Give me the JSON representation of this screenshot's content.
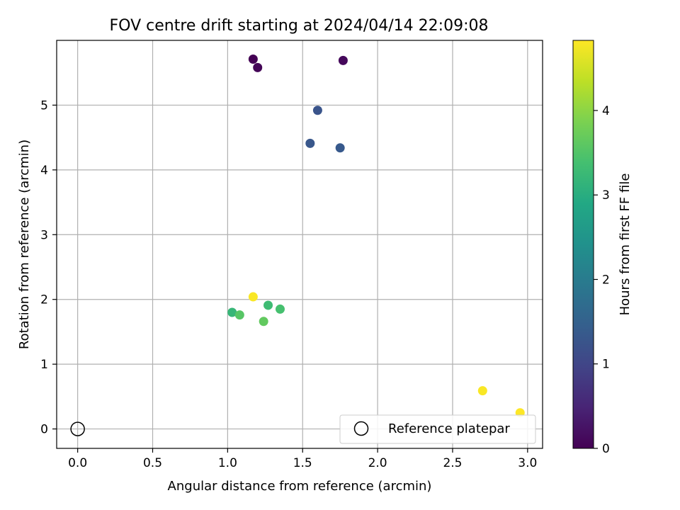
{
  "chart_data": {
    "type": "scatter",
    "title": "FOV centre drift starting at 2024/04/14 22:09:08",
    "xlabel": "Angular distance from reference (arcmin)",
    "ylabel": "Rotation from reference (arcmin)",
    "xlim": [
      -0.14,
      3.1
    ],
    "ylim": [
      -0.3,
      6.0
    ],
    "xticks": [
      0.0,
      0.5,
      1.0,
      1.5,
      2.0,
      2.5,
      3.0
    ],
    "xtick_labels": [
      "0.0",
      "0.5",
      "1.0",
      "1.5",
      "2.0",
      "2.5",
      "3.0"
    ],
    "yticks": [
      0,
      1,
      2,
      3,
      4,
      5
    ],
    "ytick_labels": [
      "0",
      "1",
      "2",
      "3",
      "4",
      "5"
    ],
    "grid": true,
    "legend_position": "bottom-right",
    "colormap": "viridis",
    "colorbar": {
      "label": "Hours from first FF file",
      "range": [
        0,
        4.83
      ],
      "ticks": [
        0,
        1,
        2,
        3,
        4
      ],
      "tick_labels": [
        "0",
        "1",
        "2",
        "3",
        "4"
      ]
    },
    "points": [
      {
        "x": 1.17,
        "y": 5.71,
        "hours": 0.0
      },
      {
        "x": 1.2,
        "y": 5.58,
        "hours": 0.05
      },
      {
        "x": 1.77,
        "y": 5.69,
        "hours": 0.1
      },
      {
        "x": 1.6,
        "y": 4.92,
        "hours": 1.25
      },
      {
        "x": 1.55,
        "y": 4.41,
        "hours": 1.3
      },
      {
        "x": 1.75,
        "y": 4.34,
        "hours": 1.35
      },
      {
        "x": 1.03,
        "y": 1.8,
        "hours": 3.2
      },
      {
        "x": 1.27,
        "y": 1.91,
        "hours": 3.3
      },
      {
        "x": 1.35,
        "y": 1.85,
        "hours": 3.4
      },
      {
        "x": 1.08,
        "y": 1.76,
        "hours": 3.55
      },
      {
        "x": 1.24,
        "y": 1.66,
        "hours": 3.65
      },
      {
        "x": 1.17,
        "y": 2.04,
        "hours": 4.8
      },
      {
        "x": 2.7,
        "y": 0.59,
        "hours": 4.8
      },
      {
        "x": 2.95,
        "y": 0.25,
        "hours": 4.83
      }
    ],
    "reference": {
      "label": "Reference platepar",
      "x": 0.0,
      "y": 0.0
    }
  }
}
